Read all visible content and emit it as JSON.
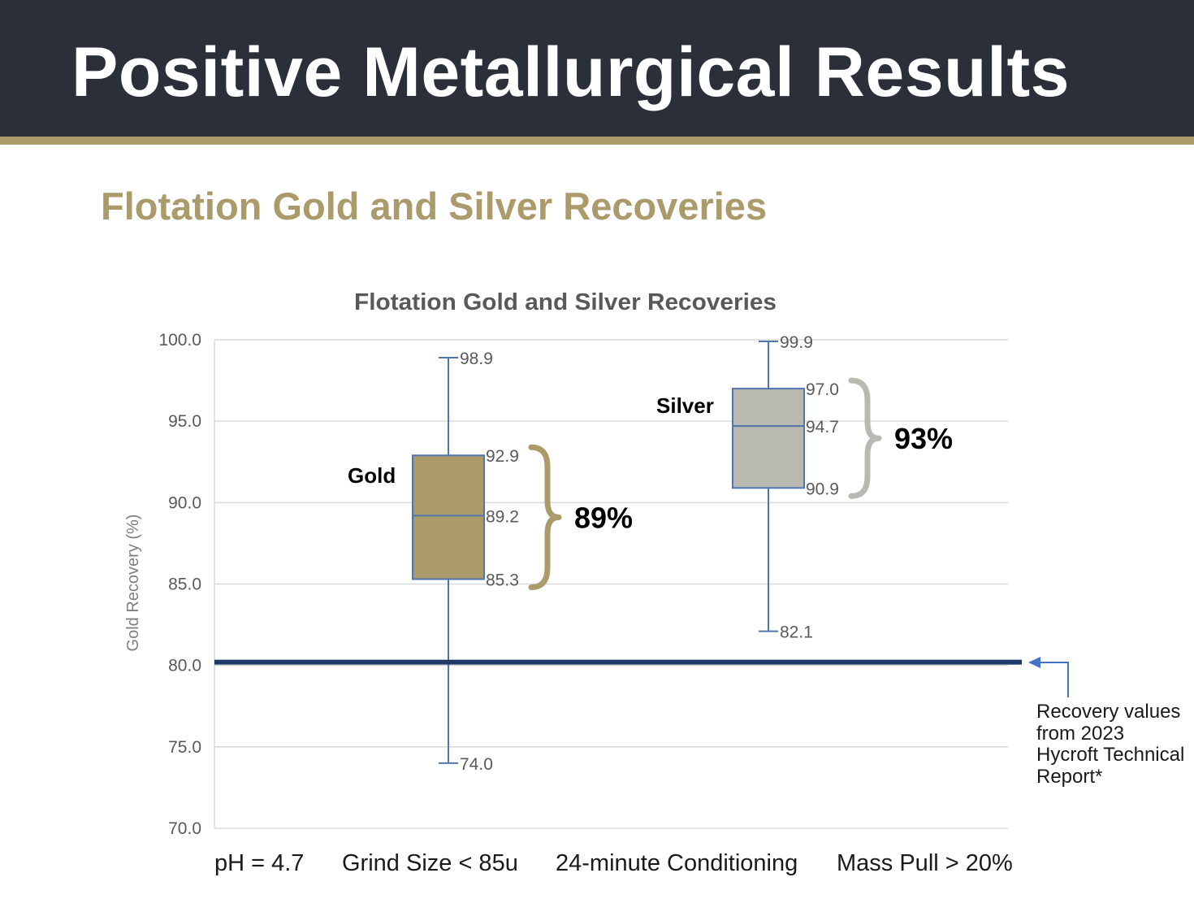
{
  "slide": {
    "title": "Positive Metallurgical Results",
    "subtitle": "Flotation Gold and Silver Recoveries"
  },
  "colors": {
    "header_bg": "#2b2f3a",
    "accent_gold": "#ab9a6a",
    "silver_fill": "#b9b8b1",
    "whisker_blue": "#4f76ae",
    "threshold_line": "#1f3a68"
  },
  "chart_data": {
    "type": "boxplot",
    "title": "Flotation Gold and Silver Recoveries",
    "ylabel": "Gold Recovery (%)",
    "ylim": [
      70,
      100
    ],
    "yticks": [
      "100.0",
      "95.0",
      "90.0",
      "85.0",
      "80.0",
      "75.0",
      "70.0"
    ],
    "grid": true,
    "series": [
      {
        "name": "Gold",
        "min": 74.0,
        "q1": 85.3,
        "median": 89.2,
        "q3": 92.9,
        "max": 98.9,
        "labels": {
          "min": "74.0",
          "q1": "85.3",
          "median": "89.2",
          "q3": "92.9",
          "max": "98.9"
        },
        "summary": "89%",
        "color": "#ab9a6a"
      },
      {
        "name": "Silver",
        "min": 82.1,
        "q1": 90.9,
        "median": 94.7,
        "q3": 97.0,
        "max": 99.9,
        "labels": {
          "min": "82.1",
          "q1": "90.9",
          "median": "94.7",
          "q3": "97.0",
          "max": "99.9"
        },
        "summary": "93%",
        "color": "#b9b8b1"
      }
    ],
    "threshold": {
      "value": 80.2,
      "annotation": "Recovery values from 2023 Hycroft Technical Report*"
    }
  },
  "conditions": [
    "pH = 4.7",
    "Grind Size < 85u",
    "24-minute Conditioning",
    "Mass Pull > 20%"
  ]
}
